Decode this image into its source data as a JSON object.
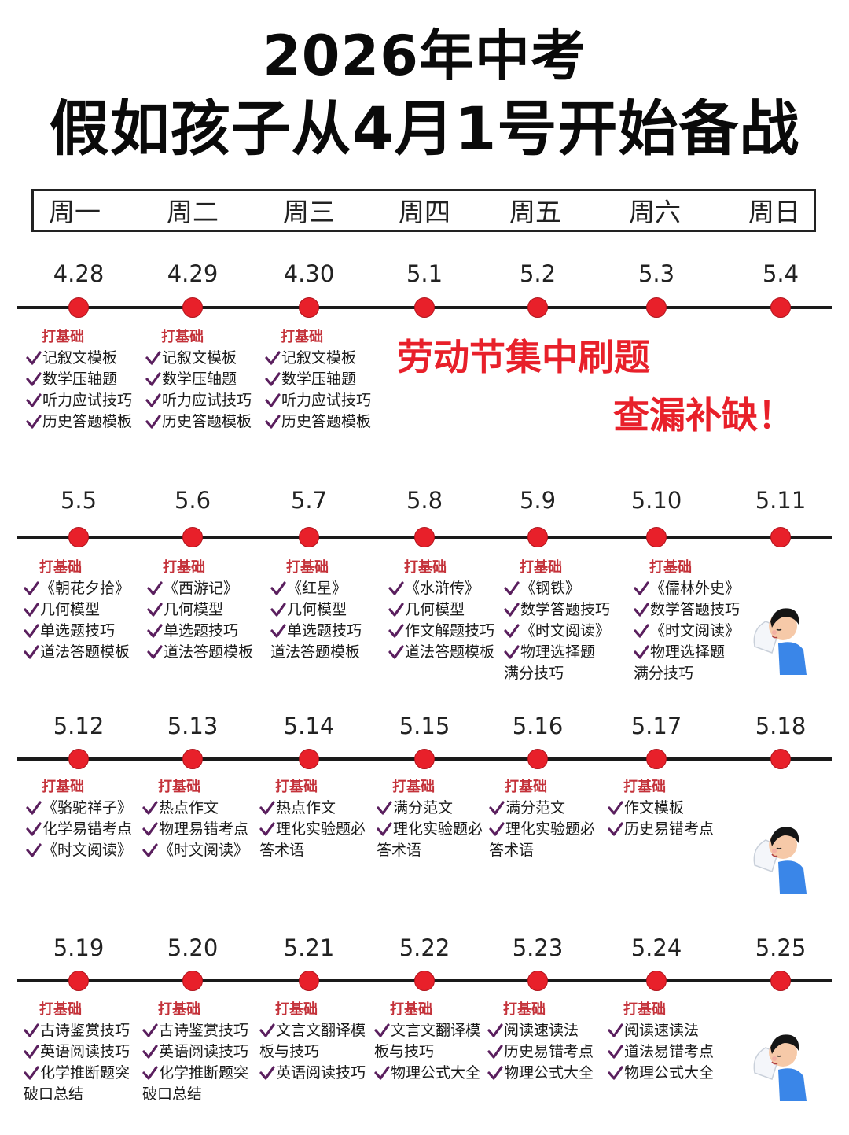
{
  "header": {
    "title_line1": "2026年中考",
    "title_line2": "假如孩子从4月1号开始备战"
  },
  "weekdays": [
    "周一",
    "周二",
    "周三",
    "周四",
    "周五",
    "周六",
    "周日"
  ],
  "weeks": [
    {
      "dates": [
        "4.28",
        "4.29",
        "4.30",
        "5.1",
        "5.2",
        "5.3",
        "5.4"
      ],
      "slogan_line1": "劳动节集中刷题",
      "slogan_line2": "查漏补缺！",
      "notes": [
        {
          "tag": "打基础",
          "items": [
            {
              "text": "记叙文模板",
              "check": true
            },
            {
              "text": "数学压轴题",
              "check": true
            },
            {
              "text": "听力应试技巧",
              "check": true
            },
            {
              "text": "历史答题模板",
              "check": true
            }
          ]
        },
        {
          "tag": "打基础",
          "items": [
            {
              "text": "记叙文模板",
              "check": true
            },
            {
              "text": "数学压轴题",
              "check": true
            },
            {
              "text": "听力应试技巧",
              "check": true
            },
            {
              "text": "历史答题模板",
              "check": true
            }
          ]
        },
        {
          "tag": "打基础",
          "items": [
            {
              "text": "记叙文模板",
              "check": true
            },
            {
              "text": "数学压轴题",
              "check": true
            },
            {
              "text": "听力应试技巧",
              "check": true
            },
            {
              "text": "历史答题模板",
              "check": true
            }
          ]
        }
      ]
    },
    {
      "dates": [
        "5.5",
        "5.6",
        "5.7",
        "5.8",
        "5.9",
        "5.10",
        "5.11"
      ],
      "notes": [
        {
          "tag": "打基础",
          "items": [
            {
              "text": "《朝花夕拾》",
              "check": true
            },
            {
              "text": "几何模型",
              "check": true
            },
            {
              "text": "单选题技巧",
              "check": true
            },
            {
              "text": "道法答题模板",
              "check": true
            }
          ]
        },
        {
          "tag": "打基础",
          "items": [
            {
              "text": "《西游记》",
              "check": true
            },
            {
              "text": "几何模型",
              "check": true
            },
            {
              "text": "单选题技巧",
              "check": true
            },
            {
              "text": "道法答题模板",
              "check": true
            }
          ]
        },
        {
          "tag": "打基础",
          "items": [
            {
              "text": "《红星》",
              "check": true
            },
            {
              "text": "几何模型",
              "check": true
            },
            {
              "text": "单选题技巧",
              "check": true
            },
            {
              "text": "道法答题模板",
              "check": false
            }
          ]
        },
        {
          "tag": "打基础",
          "items": [
            {
              "text": "《水浒传》",
              "check": true
            },
            {
              "text": "几何模型",
              "check": true
            },
            {
              "text": "作文解题技巧",
              "check": true
            },
            {
              "text": "道法答题模板",
              "check": true
            }
          ]
        },
        {
          "tag": "打基础",
          "items": [
            {
              "text": "《钢铁》",
              "check": true
            },
            {
              "text": "数学答题技巧",
              "check": true
            },
            {
              "text": "《时文阅读》",
              "check": true
            },
            {
              "text": "物理选择题",
              "check": true
            },
            {
              "text": "满分技巧",
              "check": false
            }
          ]
        },
        {
          "tag": "打基础",
          "items": [
            {
              "text": "《儒林外史》",
              "check": true
            },
            {
              "text": "数学答题技巧",
              "check": true
            },
            {
              "text": "《时文阅读》",
              "check": true
            },
            {
              "text": "物理选择题",
              "check": true
            },
            {
              "text": "满分技巧",
              "check": false
            }
          ]
        }
      ]
    },
    {
      "dates": [
        "5.12",
        "5.13",
        "5.14",
        "5.15",
        "5.16",
        "5.17",
        "5.18"
      ],
      "notes": [
        {
          "tag": "打基础",
          "items": [
            {
              "text": "《骆驼祥子》",
              "check": true
            },
            {
              "text": "化学易错考点",
              "check": true
            },
            {
              "text": "《时文阅读》",
              "check": true
            }
          ]
        },
        {
          "tag": "打基础",
          "items": [
            {
              "text": "热点作文",
              "check": true
            },
            {
              "text": "物理易错考点",
              "check": true
            },
            {
              "text": "《时文阅读》",
              "check": true
            }
          ]
        },
        {
          "tag": "打基础",
          "items": [
            {
              "text": "热点作文",
              "check": true
            },
            {
              "text": "理化实验题必",
              "check": true
            },
            {
              "text": "答术语",
              "check": false
            }
          ]
        },
        {
          "tag": "打基础",
          "items": [
            {
              "text": "满分范文",
              "check": true
            },
            {
              "text": "理化实验题必",
              "check": true
            },
            {
              "text": "答术语",
              "check": false
            }
          ]
        },
        {
          "tag": "打基础",
          "items": [
            {
              "text": "满分范文",
              "check": true
            },
            {
              "text": "理化实验题必",
              "check": true
            },
            {
              "text": "答术语",
              "check": false
            }
          ]
        },
        {
          "tag": "打基础",
          "items": [
            {
              "text": "作文模板",
              "check": true
            },
            {
              "text": "历史易错考点",
              "check": true
            }
          ]
        }
      ]
    },
    {
      "dates": [
        "5.19",
        "5.20",
        "5.21",
        "5.22",
        "5.23",
        "5.24",
        "5.25"
      ],
      "notes": [
        {
          "tag": "打基础",
          "items": [
            {
              "text": "古诗鉴赏技巧",
              "check": true
            },
            {
              "text": "英语阅读技巧",
              "check": true
            },
            {
              "text": "化学推断题突",
              "check": true
            },
            {
              "text": "破口总结",
              "check": false
            }
          ]
        },
        {
          "tag": "打基础",
          "items": [
            {
              "text": "古诗鉴赏技巧",
              "check": true
            },
            {
              "text": "英语阅读技巧",
              "check": true
            },
            {
              "text": "化学推断题突",
              "check": true
            },
            {
              "text": "破口总结",
              "check": false
            }
          ]
        },
        {
          "tag": "打基础",
          "items": [
            {
              "text": "文言文翻译模",
              "check": true
            },
            {
              "text": "板与技巧",
              "check": false
            },
            {
              "text": "英语阅读技巧",
              "check": true
            }
          ]
        },
        {
          "tag": "打基础",
          "items": [
            {
              "text": "文言文翻译模",
              "check": true
            },
            {
              "text": "板与技巧",
              "check": false
            },
            {
              "text": "物理公式大全",
              "check": true
            }
          ]
        },
        {
          "tag": "打基础",
          "items": [
            {
              "text": "阅读速读法",
              "check": true
            },
            {
              "text": "历史易错考点",
              "check": true
            },
            {
              "text": "物理公式大全",
              "check": true
            }
          ]
        },
        {
          "tag": "打基础",
          "items": [
            {
              "text": "阅读速读法",
              "check": true
            },
            {
              "text": "道法易错考点",
              "check": true
            },
            {
              "text": "物理公式大全",
              "check": true
            }
          ]
        }
      ]
    }
  ]
}
